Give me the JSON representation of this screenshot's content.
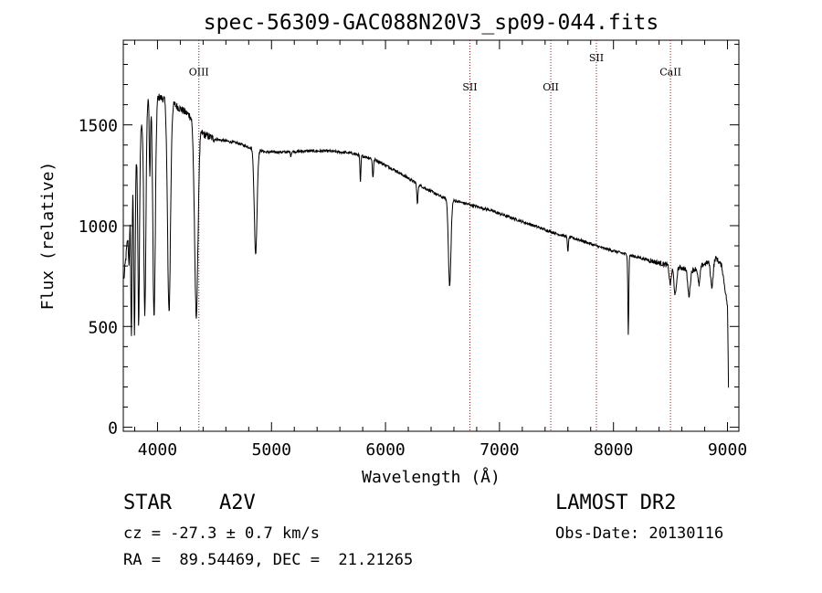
{
  "chart_data": {
    "type": "line",
    "title": "spec-56309-GAC088N20V3_sp09-044.fits",
    "xlabel": "Wavelength (Å)",
    "ylabel": "Flux (relative)",
    "xlim": [
      3700,
      9100
    ],
    "ylim": [
      -20,
      1920
    ],
    "x_ticks": [
      4000,
      5000,
      6000,
      7000,
      8000,
      9000
    ],
    "y_ticks": [
      0,
      500,
      1000,
      1500
    ],
    "grid": false,
    "line_color": "#000000",
    "marker_color": "#8b1a1a",
    "line_markers": [
      {
        "label": "OIII",
        "x": 4363,
        "label_y": 1745
      },
      {
        "label": "SII",
        "x": 6740,
        "label_y": 1670
      },
      {
        "label": "OII",
        "x": 7450,
        "label_y": 1670
      },
      {
        "label": "SII",
        "x": 7850,
        "label_y": 1815
      },
      {
        "label": "CaII",
        "x": 8500,
        "label_y": 1745
      }
    ],
    "continuum": [
      [
        3700,
        700
      ],
      [
        3780,
        1200
      ],
      [
        3860,
        1500
      ],
      [
        3930,
        1650
      ],
      [
        4000,
        1640
      ],
      [
        4100,
        1620
      ],
      [
        4200,
        1580
      ],
      [
        4300,
        1540
      ],
      [
        4400,
        1455
      ],
      [
        4500,
        1430
      ],
      [
        4600,
        1420
      ],
      [
        4700,
        1410
      ],
      [
        4800,
        1390
      ],
      [
        4950,
        1365
      ],
      [
        5100,
        1365
      ],
      [
        5300,
        1370
      ],
      [
        5500,
        1370
      ],
      [
        5700,
        1360
      ],
      [
        5900,
        1330
      ],
      [
        6100,
        1270
      ],
      [
        6300,
        1200
      ],
      [
        6500,
        1140
      ],
      [
        6700,
        1110
      ],
      [
        6900,
        1080
      ],
      [
        7100,
        1040
      ],
      [
        7300,
        1000
      ],
      [
        7500,
        960
      ],
      [
        7700,
        930
      ],
      [
        7900,
        890
      ],
      [
        8100,
        860
      ],
      [
        8300,
        830
      ],
      [
        8500,
        800
      ],
      [
        8700,
        780
      ],
      [
        8900,
        840
      ],
      [
        8950,
        800
      ],
      [
        9000,
        600
      ],
      [
        9010,
        150
      ]
    ],
    "absorption_lines": [
      {
        "center": 3750,
        "depth": 200,
        "width": 5
      },
      {
        "center": 3771,
        "depth": 700,
        "width": 5
      },
      {
        "center": 3798,
        "depth": 800,
        "width": 6
      },
      {
        "center": 3835,
        "depth": 900,
        "width": 7
      },
      {
        "center": 3889,
        "depth": 1000,
        "width": 9
      },
      {
        "center": 3933,
        "depth": 400,
        "width": 5
      },
      {
        "center": 3970,
        "depth": 1100,
        "width": 11
      },
      {
        "center": 4101,
        "depth": 1050,
        "width": 13
      },
      {
        "center": 4340,
        "depth": 950,
        "width": 15
      },
      {
        "center": 4861,
        "depth": 520,
        "width": 12
      },
      {
        "center": 5170,
        "depth": 20,
        "width": 4
      },
      {
        "center": 5780,
        "depth": 140,
        "width": 4
      },
      {
        "center": 5890,
        "depth": 90,
        "width": 5
      },
      {
        "center": 6280,
        "depth": 100,
        "width": 5
      },
      {
        "center": 6563,
        "depth": 430,
        "width": 11
      },
      {
        "center": 7600,
        "depth": 70,
        "width": 5
      },
      {
        "center": 8130,
        "depth": 400,
        "width": 4
      },
      {
        "center": 8498,
        "depth": 90,
        "width": 9
      },
      {
        "center": 8542,
        "depth": 140,
        "width": 11
      },
      {
        "center": 8662,
        "depth": 130,
        "width": 11
      },
      {
        "center": 8750,
        "depth": 90,
        "width": 9
      },
      {
        "center": 8863,
        "depth": 130,
        "width": 11
      }
    ]
  },
  "info": {
    "object_type": "STAR",
    "subclass": "A2V",
    "redshift_line": "cz = -27.3 ± 0.7 km/s",
    "coords_line": "RA =  89.54469, DEC =  21.21265",
    "survey": "LAMOST DR2",
    "obs_date_line": "Obs-Date: 20130116"
  }
}
